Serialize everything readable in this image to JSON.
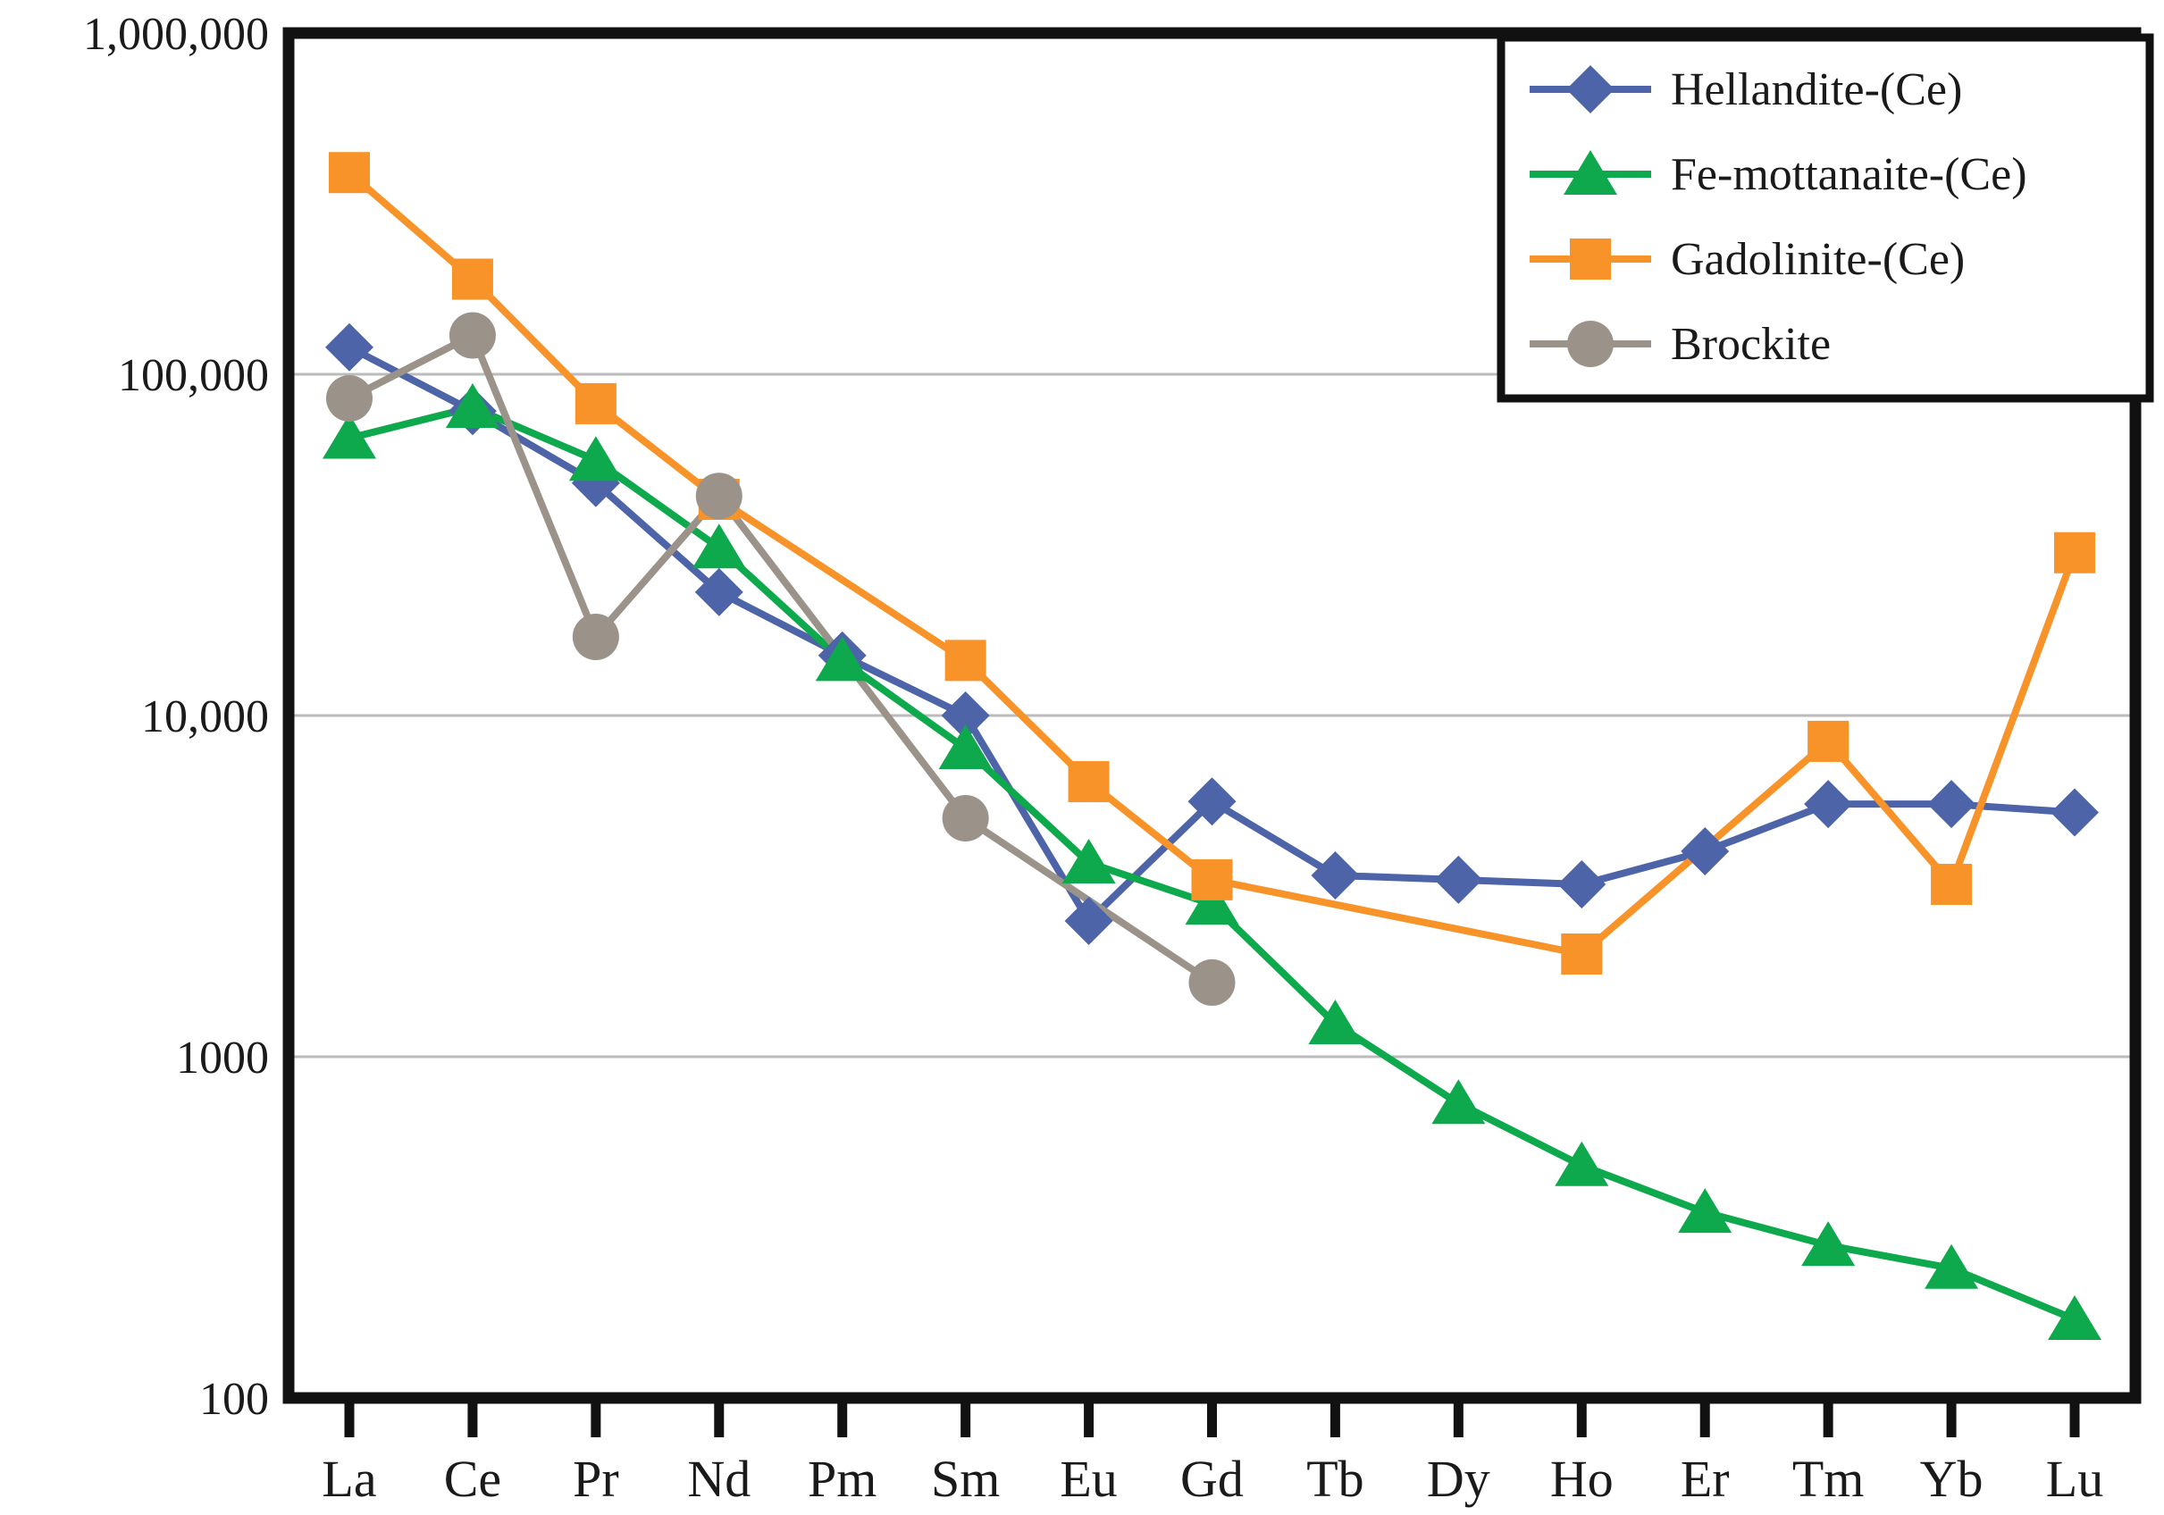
{
  "figure": {
    "title": "",
    "kind": "REE chondrite-normalized spider diagram"
  },
  "chart_data": {
    "type": "line",
    "title": "",
    "xlabel": "",
    "ylabel": "",
    "x_categories": [
      "La",
      "Ce",
      "Pr",
      "Nd",
      "Pm",
      "Sm",
      "Eu",
      "Gd",
      "Tb",
      "Dy",
      "Ho",
      "Er",
      "Tm",
      "Yb",
      "Lu"
    ],
    "y_axis": {
      "scale": "log",
      "min": 100,
      "max": 1000000,
      "ticks": [
        {
          "value": 1000000,
          "label": "1,000,000"
        },
        {
          "value": 100000,
          "label": "100,000"
        },
        {
          "value": 10000,
          "label": "10,000"
        },
        {
          "value": 1000,
          "label": "1000"
        },
        {
          "value": 100,
          "label": "100"
        }
      ],
      "gridlines": [
        100000,
        10000,
        1000
      ]
    },
    "grid": "horizontal-only",
    "legend_position": "top-right",
    "series": [
      {
        "name": "Hellandite-(Ce)",
        "color": "#4d64a8",
        "marker": "diamond",
        "values": [
          120000,
          78000,
          48000,
          23000,
          15000,
          10000,
          2500,
          5600,
          3400,
          3300,
          3200,
          4000,
          5500,
          5500,
          5200
        ]
      },
      {
        "name": "Fe-mottanaite-(Ce)",
        "color": "#0da94c",
        "marker": "triangle",
        "values": [
          65000,
          80000,
          56000,
          31000,
          14500,
          8000,
          3700,
          2800,
          1250,
          730,
          480,
          350,
          280,
          240,
          170
        ]
      },
      {
        "name": "Gadolinite-(Ce)",
        "color": "#f79329",
        "marker": "square",
        "values": [
          390000,
          190000,
          82000,
          43000,
          null,
          14500,
          6400,
          3300,
          null,
          null,
          2000,
          null,
          8400,
          3200,
          30000
        ]
      },
      {
        "name": "Brockite",
        "color": "#9b9389",
        "marker": "circle",
        "values": [
          85000,
          130000,
          17000,
          44000,
          null,
          5000,
          null,
          1650,
          null,
          null,
          null,
          null,
          null,
          null,
          null
        ]
      }
    ],
    "style": {
      "background": "#ffffff",
      "axis_color": "#111111",
      "gridline_color": "#bbbbbb",
      "text_color": "#1a1a1a"
    }
  }
}
